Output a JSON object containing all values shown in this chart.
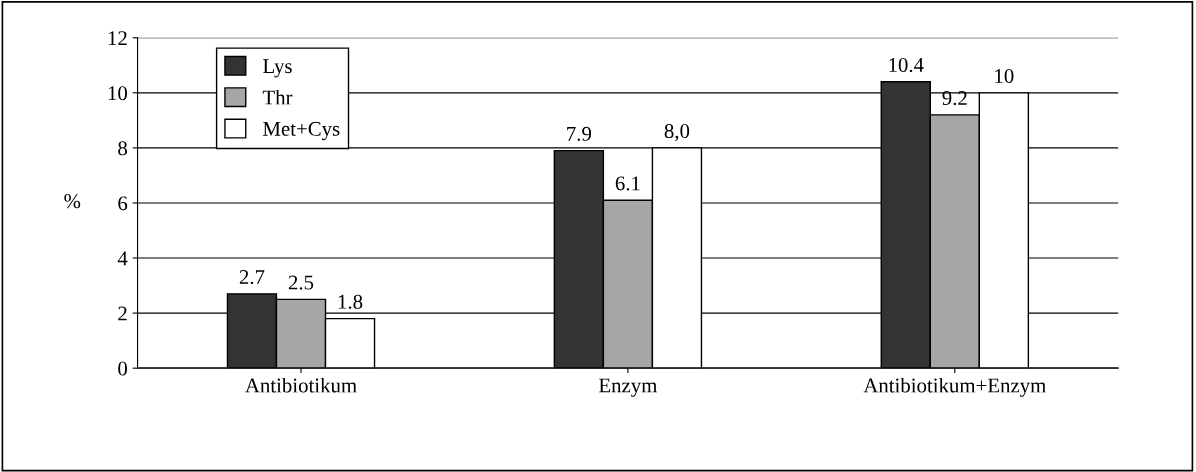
{
  "chart_data": {
    "type": "bar",
    "ylabel": "%",
    "categories": [
      "Antibiotikum",
      "Enzym",
      "Antibiotikum+Enzym"
    ],
    "series": [
      {
        "name": "Lys",
        "color": "#333333",
        "values": [
          2.7,
          7.9,
          10.4
        ],
        "value_labels": [
          "2.7",
          "7.9",
          "10.4"
        ]
      },
      {
        "name": "Thr",
        "color": "#a6a6a6",
        "values": [
          2.5,
          6.1,
          9.2
        ],
        "value_labels": [
          "2.5",
          "6.1",
          "9.2"
        ]
      },
      {
        "name": "Met+Cys",
        "color": "#ffffff",
        "values": [
          1.8,
          8.0,
          10
        ],
        "value_labels": [
          "1.8",
          "8,0",
          "10"
        ]
      }
    ],
    "ylim": [
      0,
      12
    ],
    "yticks": [
      0,
      2,
      4,
      6,
      8,
      10,
      12
    ],
    "grid": "y",
    "legend": "top left"
  }
}
